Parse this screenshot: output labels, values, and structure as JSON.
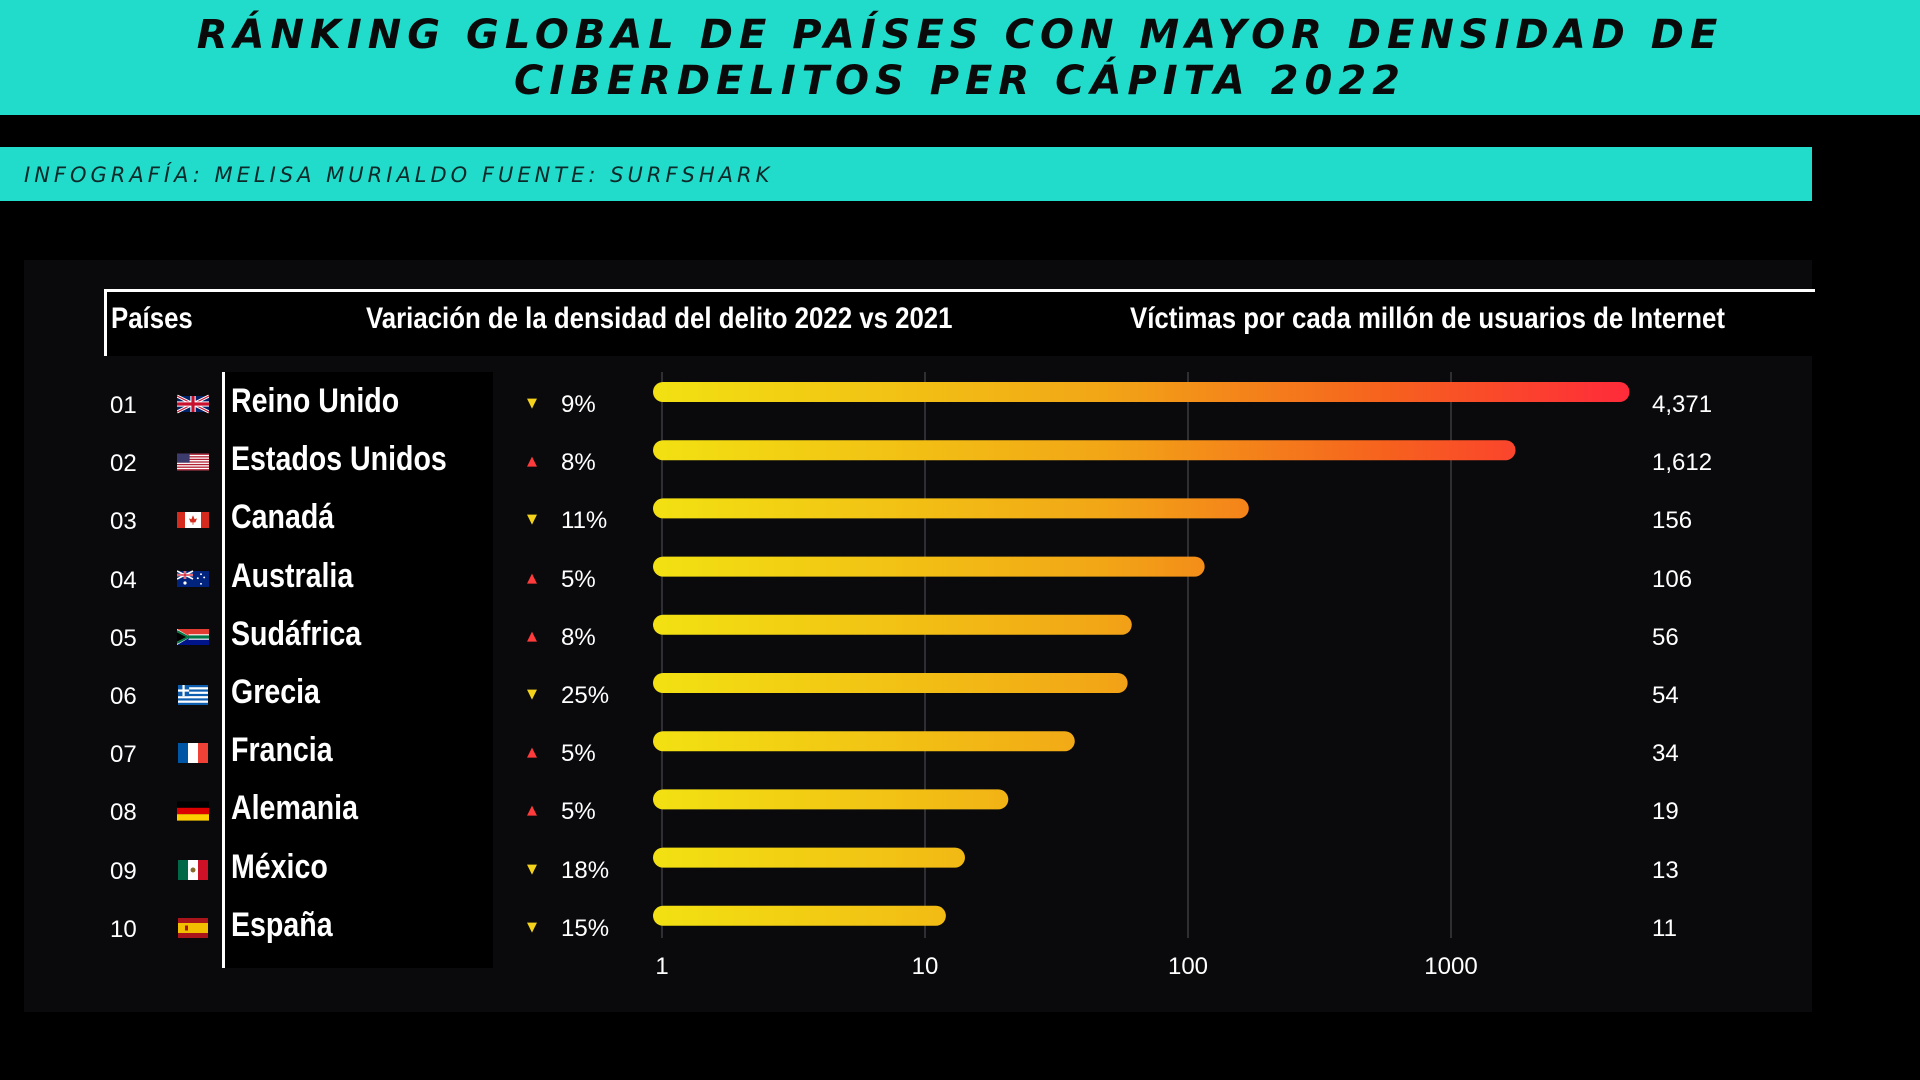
{
  "title": "RÁNKING GLOBAL DE PAÍSES CON MAYOR DENSIDAD DE CIBERDELITOS PER CÁPITA 2022",
  "credit": "INFOGRAFÍA: MELISA MURIALDO FUENTE: SURFSHARK",
  "colors": {
    "accent": "#22dccb",
    "background": "#000000",
    "bar_low": "#f2e012",
    "bar_high": "#ff2a3a",
    "arrow_down": "#f4d21c",
    "arrow_up": "#ff3b3b"
  },
  "chart_data": {
    "type": "bar",
    "orientation": "horizontal",
    "x_scale": "log",
    "xlim": [
      1,
      4371
    ],
    "x_ticks": [
      "1",
      "10",
      "100",
      "1000"
    ],
    "x_tick_values": [
      1,
      10,
      100,
      1000
    ],
    "grid": true,
    "headers": {
      "countries": "Países",
      "variation": "Variación de la densidad del delito 2022 vs 2021",
      "victims": "Víctimas por cada millón de usuarios de Internet"
    },
    "rows": [
      {
        "rank": "01",
        "country": "Reino Unido",
        "flag": "uk-flag-icon",
        "direction": "down",
        "variation": "9%",
        "value": 4371,
        "value_label": "4,371"
      },
      {
        "rank": "02",
        "country": "Estados Unidos",
        "flag": "us-flag-icon",
        "direction": "up",
        "variation": "8%",
        "value": 1612,
        "value_label": "1,612"
      },
      {
        "rank": "03",
        "country": "Canadá",
        "flag": "canada-flag-icon",
        "direction": "down",
        "variation": "11%",
        "value": 156,
        "value_label": "156"
      },
      {
        "rank": "04",
        "country": "Australia",
        "flag": "australia-flag-icon",
        "direction": "up",
        "variation": "5%",
        "value": 106,
        "value_label": "106"
      },
      {
        "rank": "05",
        "country": "Sudáfrica",
        "flag": "south-africa-flag-icon",
        "direction": "up",
        "variation": "8%",
        "value": 56,
        "value_label": "56"
      },
      {
        "rank": "06",
        "country": "Grecia",
        "flag": "greece-flag-icon",
        "direction": "down",
        "variation": "25%",
        "value": 54,
        "value_label": "54"
      },
      {
        "rank": "07",
        "country": "Francia",
        "flag": "france-flag-icon",
        "direction": "up",
        "variation": "5%",
        "value": 34,
        "value_label": "34"
      },
      {
        "rank": "08",
        "country": "Alemania",
        "flag": "germany-flag-icon",
        "direction": "up",
        "variation": "5%",
        "value": 19,
        "value_label": "19"
      },
      {
        "rank": "09",
        "country": "México",
        "flag": "mexico-flag-icon",
        "direction": "down",
        "variation": "18%",
        "value": 13,
        "value_label": "13"
      },
      {
        "rank": "10",
        "country": "España",
        "flag": "spain-flag-icon",
        "direction": "down",
        "variation": "15%",
        "value": 11,
        "value_label": "11"
      }
    ]
  }
}
